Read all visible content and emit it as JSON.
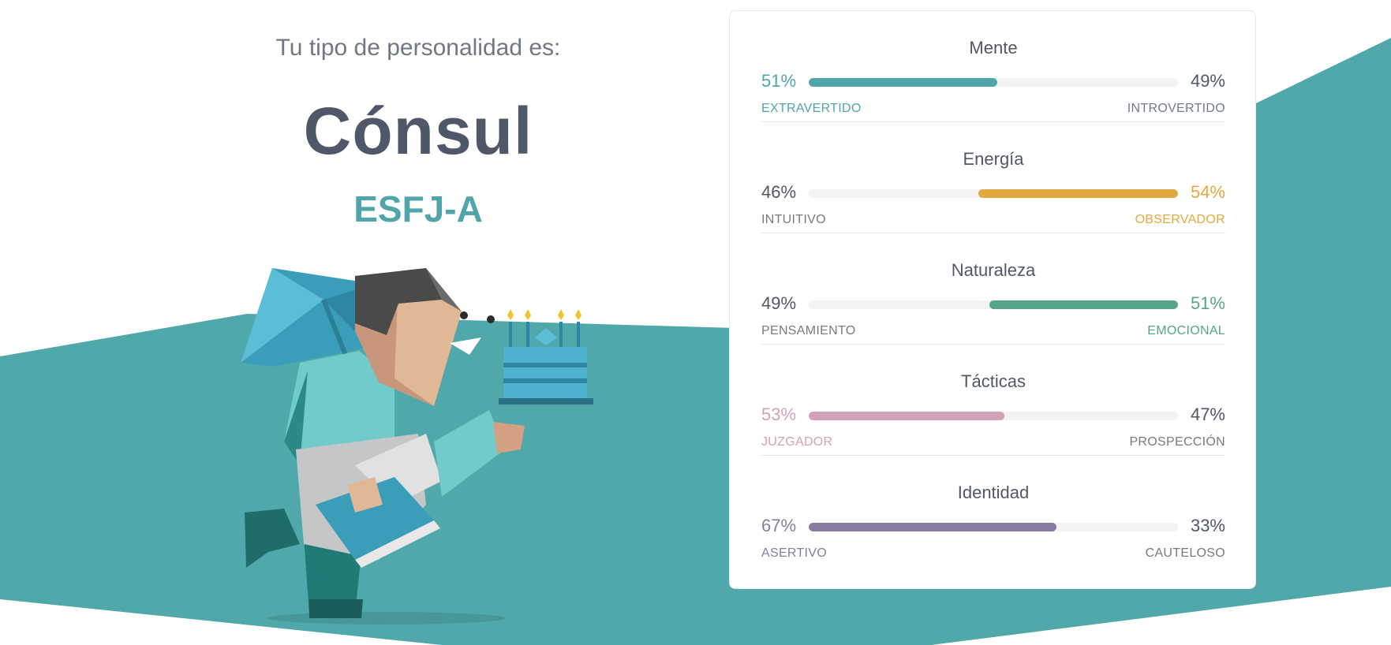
{
  "hero": {
    "lead": "Tu tipo de personalidad es:",
    "title": "Cónsul",
    "code": "ESFJ-A"
  },
  "colors": {
    "teal": "#50a8aa",
    "title_text": "#4f5868",
    "muted_text": "#737b87"
  },
  "traits": [
    {
      "name": "Mente",
      "left_pct": "51%",
      "right_pct": "49%",
      "left_label": "EXTRAVERTIDO",
      "right_label": "INTROVERTIDO",
      "dominant": "left",
      "value": 0.51,
      "color": "#4fa5a9"
    },
    {
      "name": "Energía",
      "left_pct": "46%",
      "right_pct": "54%",
      "left_label": "INTUITIVO",
      "right_label": "OBSERVADOR",
      "dominant": "right",
      "value": 0.54,
      "color": "#e3a941"
    },
    {
      "name": "Naturaleza",
      "left_pct": "49%",
      "right_pct": "51%",
      "left_label": "PENSAMIENTO",
      "right_label": "EMOCIONAL",
      "dominant": "right",
      "value": 0.51,
      "color": "#55a686"
    },
    {
      "name": "Tácticas",
      "left_pct": "53%",
      "right_pct": "47%",
      "left_label": "JUZGADOR",
      "right_label": "PROSPECCIÓN",
      "dominant": "left",
      "value": 0.53,
      "color": "#d3a0b9"
    },
    {
      "name": "Identidad",
      "left_pct": "67%",
      "right_pct": "33%",
      "left_label": "ASERTIVO",
      "right_label": "CAUTELOSO",
      "dominant": "left",
      "value": 0.67,
      "color": "#8b7aa0"
    }
  ]
}
